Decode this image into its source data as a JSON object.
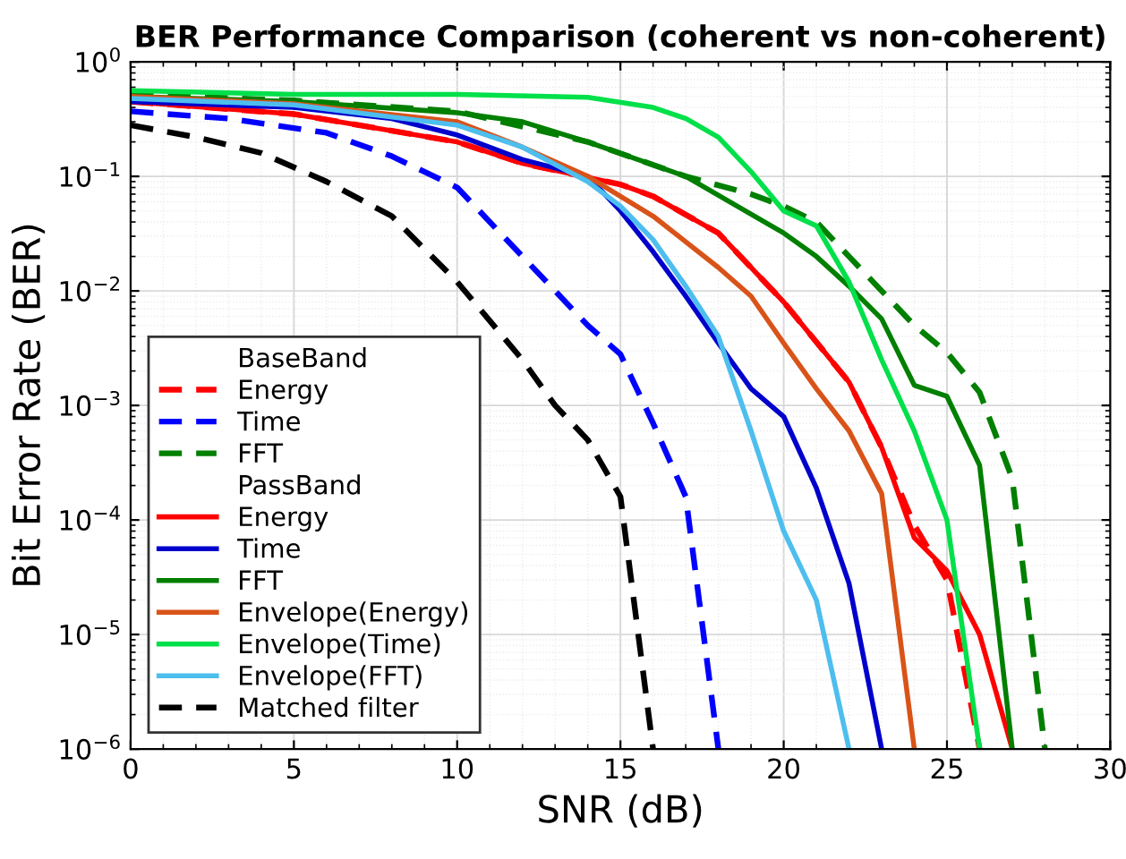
{
  "chart_data": {
    "type": "line",
    "title": "BER Performance Comparison (coherent vs non-coherent)",
    "xlabel": "SNR (dB)",
    "ylabel": "Bit Error Rate (BER)",
    "log": "y",
    "xlim": [
      0,
      30
    ],
    "xticks": [
      0,
      5,
      10,
      15,
      20,
      25,
      30
    ],
    "ylim": [
      1e-06,
      1
    ],
    "yticks": [
      {
        "value": 1e-06,
        "label": "10$^{−6}$"
      },
      {
        "value": 1e-05,
        "label": "10$^{−5}$"
      },
      {
        "value": 0.0001,
        "label": "10$^{−4}$"
      },
      {
        "value": 0.001,
        "label": "10$^{−3}$"
      },
      {
        "value": 0.01,
        "label": "10$^{−2}$"
      },
      {
        "value": 0.1,
        "label": "10$^{−1}$"
      },
      {
        "value": 1,
        "label": "10$^{0}$"
      }
    ],
    "grid": true,
    "legend": "bottom left",
    "annotations": [
      "BaseBand",
      "PassBand"
    ],
    "series": [
      {
        "name": "Energy",
        "color": "#ff0000",
        "line_style": "dashed",
        "x": [
          0,
          5,
          10,
          12,
          15,
          16,
          18,
          20,
          22,
          23,
          24,
          25,
          26
        ],
        "values": [
          0.45,
          0.35,
          0.2,
          0.13,
          0.085,
          0.067,
          0.032,
          0.008,
          0.0016,
          0.00043,
          9e-05,
          3e-05,
          1e-06
        ]
      },
      {
        "name": "Time",
        "color": "#0000ff",
        "line_style": "dashed",
        "x": [
          0,
          3,
          6,
          8,
          10,
          12,
          14,
          15,
          16,
          17,
          18
        ],
        "values": [
          0.37,
          0.32,
          0.24,
          0.15,
          0.08,
          0.02,
          0.005,
          0.0028,
          0.0007,
          0.00016,
          1e-06
        ]
      },
      {
        "name": "FFT",
        "color": "#007f00",
        "line_style": "dashed",
        "x": [
          0,
          5,
          10,
          14,
          17,
          19,
          20,
          21,
          22,
          23,
          24,
          25,
          26,
          27,
          28
        ],
        "values": [
          0.52,
          0.46,
          0.37,
          0.2,
          0.1,
          0.07,
          0.055,
          0.04,
          0.02,
          0.01,
          0.005,
          0.0029,
          0.0013,
          0.00023,
          1e-06
        ]
      },
      {
        "name": "Energy",
        "color": "#ff0000",
        "line_style": "solid",
        "x": [
          0,
          5,
          10,
          12,
          15,
          16,
          18,
          20,
          22,
          23,
          24,
          25,
          26,
          27
        ],
        "values": [
          0.45,
          0.35,
          0.2,
          0.13,
          0.085,
          0.067,
          0.032,
          0.008,
          0.0016,
          0.00043,
          7e-05,
          3.6e-05,
          1e-05,
          1e-06
        ]
      },
      {
        "name": "Time",
        "color": "#0000cc",
        "line_style": "solid",
        "x": [
          0,
          5,
          8,
          10,
          12,
          14,
          15,
          16,
          17,
          18,
          19,
          20,
          21,
          22,
          23
        ],
        "values": [
          0.45,
          0.4,
          0.32,
          0.23,
          0.14,
          0.1,
          0.05,
          0.022,
          0.009,
          0.0035,
          0.0014,
          0.0008,
          0.00019,
          2.8e-05,
          1e-06
        ]
      },
      {
        "name": "FFT",
        "color": "#007f00",
        "line_style": "solid",
        "x": [
          0,
          5,
          10,
          12,
          14,
          17,
          20,
          21,
          22,
          23,
          24,
          25,
          26,
          27
        ],
        "values": [
          0.5,
          0.45,
          0.36,
          0.3,
          0.2,
          0.1,
          0.032,
          0.02,
          0.011,
          0.0057,
          0.0015,
          0.0012,
          0.0003,
          1e-06
        ]
      },
      {
        "name": "Envelope(Energy)",
        "color": "#d95319",
        "line_style": "solid",
        "x": [
          0,
          5,
          10,
          12,
          14,
          16,
          18,
          19,
          20,
          21,
          22,
          23,
          24
        ],
        "values": [
          0.5,
          0.43,
          0.3,
          0.18,
          0.1,
          0.045,
          0.016,
          0.009,
          0.0035,
          0.0014,
          0.0006,
          0.00017,
          1e-06
        ]
      },
      {
        "name": "Envelope(Time)",
        "color": "#00e04a",
        "line_style": "solid",
        "x": [
          0,
          5,
          10,
          14,
          16,
          17,
          18,
          19,
          20,
          21,
          22,
          23,
          24,
          25,
          26
        ],
        "values": [
          0.56,
          0.52,
          0.52,
          0.49,
          0.4,
          0.32,
          0.22,
          0.11,
          0.05,
          0.037,
          0.012,
          0.0025,
          0.0006,
          0.0001,
          1e-06
        ]
      },
      {
        "name": "Envelope(FFT)",
        "color": "#4dbeee",
        "line_style": "solid",
        "x": [
          0,
          5,
          10,
          12,
          14,
          15,
          16,
          17,
          18,
          19,
          20,
          21,
          22
        ],
        "values": [
          0.48,
          0.42,
          0.28,
          0.18,
          0.09,
          0.055,
          0.028,
          0.011,
          0.004,
          0.0006,
          8e-05,
          2e-05,
          1e-06
        ]
      },
      {
        "name": "Matched filter",
        "color": "#000000",
        "line_style": "dashed",
        "x": [
          0,
          2,
          4,
          6,
          8,
          10,
          12,
          13,
          14,
          15,
          16
        ],
        "values": [
          0.28,
          0.22,
          0.16,
          0.09,
          0.045,
          0.012,
          0.0025,
          0.001,
          0.0005,
          0.00016,
          1e-06
        ]
      }
    ]
  }
}
